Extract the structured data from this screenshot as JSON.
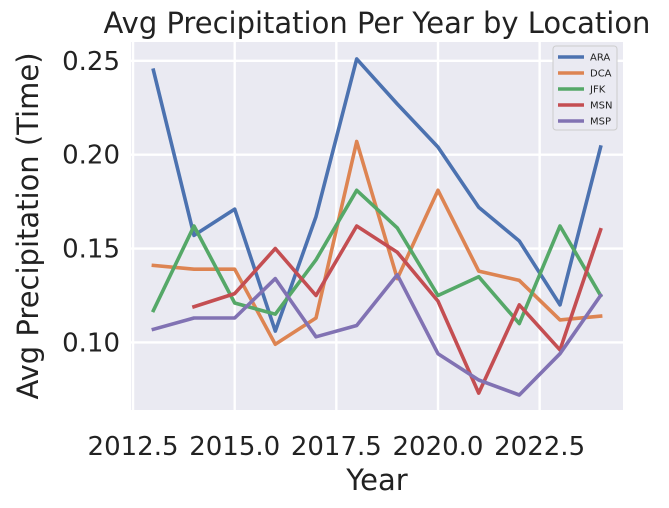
{
  "chart_data": {
    "type": "line",
    "title": "Avg Precipitation Per Year by Location",
    "xlabel": "Year",
    "ylabel": "Avg Precipitation (Time)",
    "xlim": [
      2012.45,
      2024.55
    ],
    "ylim": [
      0.064,
      0.26
    ],
    "xticks": [
      2012.5,
      2015.0,
      2017.5,
      2020.0,
      2022.5
    ],
    "xtick_labels": [
      "2012.5",
      "2015.0",
      "2017.5",
      "2020.0",
      "2022.5"
    ],
    "yticks": [
      0.1,
      0.15,
      0.2,
      0.25
    ],
    "ytick_labels": [
      "0.10",
      "0.15",
      "0.20",
      "0.25"
    ],
    "grid": true,
    "legend_position": "top-right",
    "series": [
      {
        "name": "ARA",
        "color": "#4c72b0",
        "x": [
          2013,
          2014,
          2015,
          2016,
          2017,
          2018,
          2019,
          2020,
          2021,
          2022,
          2023,
          2024
        ],
        "y": [
          0.245,
          0.157,
          0.171,
          0.106,
          0.167,
          0.251,
          0.227,
          0.204,
          0.172,
          0.154,
          0.12,
          0.204
        ]
      },
      {
        "name": "DCA",
        "color": "#dd8452",
        "x": [
          2013,
          2014,
          2015,
          2016,
          2017,
          2018,
          2019,
          2020,
          2021,
          2022,
          2023,
          2024
        ],
        "y": [
          0.141,
          0.139,
          0.139,
          0.099,
          0.113,
          0.207,
          0.134,
          0.181,
          0.138,
          0.133,
          0.112,
          0.114
        ]
      },
      {
        "name": "JFK",
        "color": "#55a868",
        "x": [
          2013,
          2014,
          2015,
          2016,
          2017,
          2018,
          2019,
          2020,
          2021,
          2022,
          2023,
          2024
        ],
        "y": [
          0.117,
          0.162,
          0.121,
          0.115,
          0.144,
          0.181,
          0.161,
          0.125,
          0.135,
          0.11,
          0.162,
          0.125
        ]
      },
      {
        "name": "MSN",
        "color": "#c44e52",
        "x": [
          2014,
          2015,
          2016,
          2017,
          2018,
          2019,
          2020,
          2021,
          2022,
          2023,
          2024
        ],
        "y": [
          0.119,
          0.126,
          0.15,
          0.125,
          0.162,
          0.148,
          0.122,
          0.073,
          0.12,
          0.096,
          0.16
        ]
      },
      {
        "name": "MSP",
        "color": "#8172b3",
        "x": [
          2013,
          2014,
          2015,
          2016,
          2017,
          2018,
          2019,
          2020,
          2021,
          2022,
          2023,
          2024
        ],
        "y": [
          0.107,
          0.113,
          0.113,
          0.134,
          0.103,
          0.109,
          0.136,
          0.094,
          0.08,
          0.072,
          0.094,
          0.125
        ]
      }
    ]
  }
}
